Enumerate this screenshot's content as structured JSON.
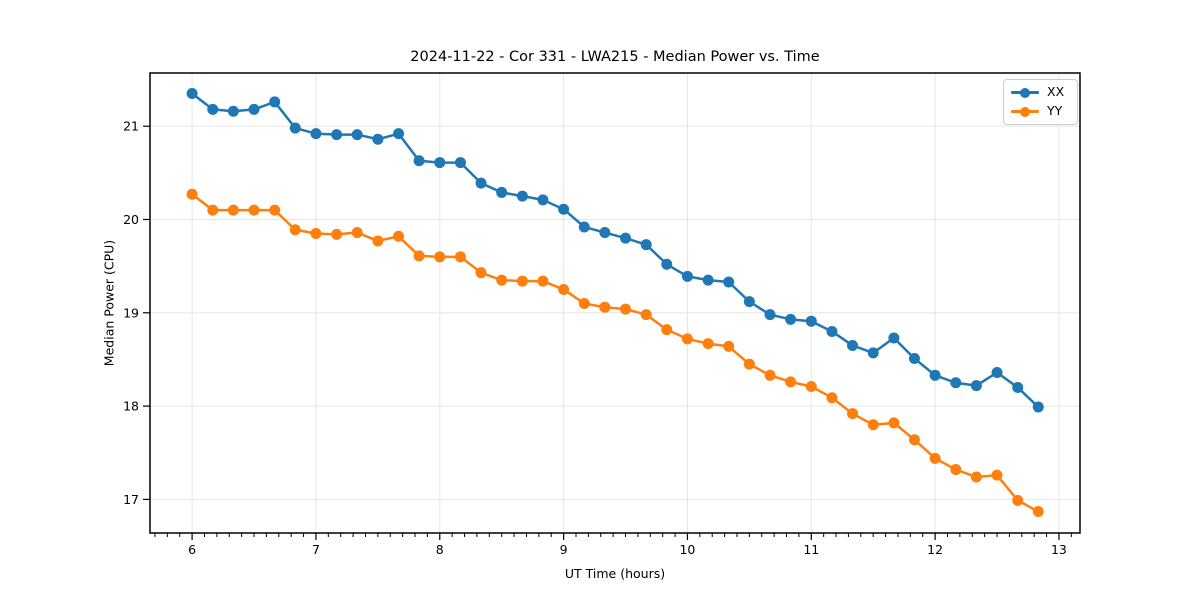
{
  "figure": {
    "background": "#ffffff"
  },
  "chart_data": {
    "type": "line",
    "title": "2024-11-22 - Cor 331 - LWA215 - Median Power vs. Time",
    "xlabel": "UT Time (hours)",
    "ylabel": "Median Power (CPU)",
    "xlim": [
      5.66,
      13.17
    ],
    "ylim": [
      16.64,
      21.57
    ],
    "xticks": [
      6,
      7,
      8,
      9,
      10,
      11,
      12,
      13
    ],
    "yticks": [
      17,
      18,
      19,
      20,
      21
    ],
    "x_minor_step": 0.1,
    "grid": true,
    "grid_color": "#e6e6e6",
    "axis_color": "#000000",
    "legend": {
      "position": "upper right",
      "entries": [
        "XX",
        "YY"
      ]
    },
    "x": [
      6.0,
      6.167,
      6.333,
      6.5,
      6.667,
      6.833,
      7.0,
      7.167,
      7.333,
      7.5,
      7.667,
      7.833,
      8.0,
      8.167,
      8.333,
      8.5,
      8.667,
      8.833,
      9.0,
      9.167,
      9.333,
      9.5,
      9.667,
      9.833,
      10.0,
      10.167,
      10.333,
      10.5,
      10.667,
      10.833,
      11.0,
      11.167,
      11.333,
      11.5,
      11.667,
      11.833,
      12.0,
      12.167,
      12.333,
      12.5,
      12.667,
      12.833
    ],
    "series": [
      {
        "name": "XX",
        "color": "#1f77b4",
        "values": [
          21.35,
          21.18,
          21.16,
          21.18,
          21.26,
          20.98,
          20.92,
          20.91,
          20.91,
          20.86,
          20.92,
          20.63,
          20.61,
          20.61,
          20.39,
          20.29,
          20.25,
          20.21,
          20.11,
          19.92,
          19.86,
          19.8,
          19.73,
          19.52,
          19.39,
          19.35,
          19.33,
          19.12,
          18.98,
          18.93,
          18.91,
          18.8,
          18.65,
          18.57,
          18.73,
          18.51,
          18.33,
          18.25,
          18.22,
          18.36,
          18.2,
          17.99
        ]
      },
      {
        "name": "YY",
        "color": "#ff7f0e",
        "values": [
          20.27,
          20.1,
          20.1,
          20.1,
          20.1,
          19.89,
          19.85,
          19.84,
          19.86,
          19.77,
          19.82,
          19.61,
          19.6,
          19.6,
          19.43,
          19.35,
          19.34,
          19.34,
          19.25,
          19.1,
          19.06,
          19.04,
          18.98,
          18.82,
          18.72,
          18.67,
          18.64,
          18.45,
          18.33,
          18.26,
          18.21,
          18.09,
          17.92,
          17.8,
          17.82,
          17.64,
          17.44,
          17.32,
          17.24,
          17.26,
          16.99,
          16.87
        ]
      }
    ]
  }
}
